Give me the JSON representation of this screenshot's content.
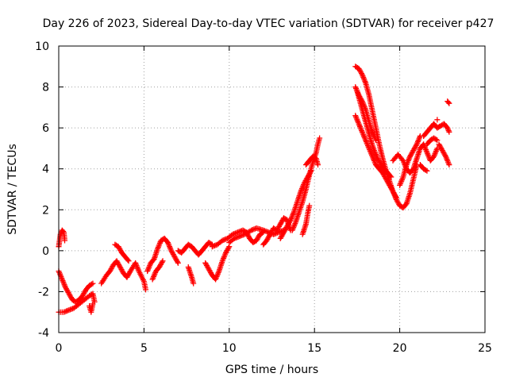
{
  "chart_data": {
    "type": "scatter",
    "title": "Day 226 of 2023, Sidereal Day-to-day VTEC variation (SDTVAR) for receiver p427",
    "xlabel": "GPS time / hours",
    "ylabel": "SDTVAR / TECUs",
    "xlim": [
      0,
      25
    ],
    "ylim": [
      -4,
      10
    ],
    "xticks": [
      0,
      5,
      10,
      15,
      20,
      25
    ],
    "yticks": [
      -4,
      -2,
      0,
      2,
      4,
      6,
      8,
      10
    ],
    "grid": true,
    "marker": "+",
    "series": [
      {
        "name": "SDTVAR",
        "color": "#ff0000",
        "segments": [
          [
            [
              0.0,
              0.2
            ],
            [
              0.1,
              0.8
            ],
            [
              0.2,
              1.0
            ],
            [
              0.3,
              0.9
            ],
            [
              0.35,
              0.5
            ]
          ],
          [
            [
              0.0,
              -1.0
            ],
            [
              0.2,
              -1.4
            ],
            [
              0.4,
              -1.8
            ],
            [
              0.6,
              -2.1
            ],
            [
              0.8,
              -2.4
            ],
            [
              1.0,
              -2.5
            ],
            [
              1.2,
              -2.4
            ],
            [
              1.4,
              -2.2
            ],
            [
              1.6,
              -1.9
            ],
            [
              1.8,
              -1.7
            ],
            [
              2.0,
              -1.6
            ]
          ],
          [
            [
              0.0,
              -3.0
            ],
            [
              0.3,
              -3.0
            ],
            [
              0.6,
              -2.9
            ],
            [
              0.9,
              -2.8
            ],
            [
              1.2,
              -2.6
            ],
            [
              1.5,
              -2.4
            ],
            [
              1.8,
              -2.2
            ],
            [
              2.0,
              -2.1
            ],
            [
              2.1,
              -2.5
            ]
          ],
          [
            [
              1.8,
              -2.7
            ],
            [
              1.9,
              -3.0
            ],
            [
              2.0,
              -2.6
            ]
          ],
          [
            [
              2.5,
              -1.6
            ],
            [
              2.8,
              -1.2
            ],
            [
              3.0,
              -1.0
            ],
            [
              3.2,
              -0.7
            ],
            [
              3.4,
              -0.5
            ],
            [
              3.6,
              -0.8
            ],
            [
              3.8,
              -1.1
            ],
            [
              4.0,
              -1.3
            ],
            [
              4.2,
              -1.0
            ],
            [
              4.5,
              -0.6
            ],
            [
              4.7,
              -1.0
            ],
            [
              5.0,
              -1.5
            ],
            [
              5.1,
              -1.9
            ]
          ],
          [
            [
              3.3,
              0.3
            ],
            [
              3.5,
              0.2
            ],
            [
              3.7,
              -0.1
            ],
            [
              3.9,
              -0.3
            ],
            [
              4.1,
              -0.5
            ]
          ],
          [
            [
              5.2,
              -1.0
            ],
            [
              5.4,
              -0.6
            ],
            [
              5.6,
              -0.4
            ],
            [
              5.8,
              0.1
            ],
            [
              6.0,
              0.5
            ],
            [
              6.2,
              0.6
            ],
            [
              6.4,
              0.4
            ],
            [
              6.6,
              0.0
            ],
            [
              6.8,
              -0.3
            ],
            [
              7.0,
              -0.6
            ]
          ],
          [
            [
              5.5,
              -1.4
            ],
            [
              5.7,
              -1.0
            ],
            [
              5.9,
              -0.8
            ],
            [
              6.1,
              -0.5
            ]
          ],
          [
            [
              7.0,
              0.0
            ],
            [
              7.2,
              -0.1
            ],
            [
              7.4,
              0.1
            ],
            [
              7.6,
              0.3
            ],
            [
              7.8,
              0.2
            ],
            [
              8.0,
              0.0
            ],
            [
              8.2,
              -0.2
            ],
            [
              8.4,
              0.0
            ],
            [
              8.6,
              0.2
            ],
            [
              8.8,
              0.4
            ],
            [
              9.0,
              0.3
            ]
          ],
          [
            [
              7.6,
              -0.8
            ],
            [
              7.8,
              -1.3
            ],
            [
              7.9,
              -1.6
            ]
          ],
          [
            [
              8.6,
              -0.6
            ],
            [
              8.8,
              -0.9
            ],
            [
              9.0,
              -1.2
            ],
            [
              9.2,
              -1.4
            ],
            [
              9.4,
              -1.0
            ],
            [
              9.6,
              -0.5
            ],
            [
              9.8,
              -0.1
            ],
            [
              10.0,
              0.2
            ]
          ],
          [
            [
              9.0,
              0.2
            ],
            [
              9.3,
              0.3
            ],
            [
              9.6,
              0.5
            ],
            [
              9.9,
              0.6
            ],
            [
              10.2,
              0.8
            ],
            [
              10.5,
              0.9
            ],
            [
              10.8,
              1.0
            ],
            [
              11.0,
              0.9
            ],
            [
              11.2,
              0.6
            ],
            [
              11.4,
              0.4
            ],
            [
              11.6,
              0.5
            ],
            [
              11.8,
              0.8
            ],
            [
              12.0,
              0.9
            ]
          ],
          [
            [
              10.0,
              0.4
            ],
            [
              10.3,
              0.6
            ],
            [
              10.6,
              0.7
            ],
            [
              10.9,
              0.8
            ],
            [
              11.3,
              1.0
            ],
            [
              11.6,
              1.1
            ],
            [
              12.0,
              1.0
            ],
            [
              12.3,
              0.9
            ],
            [
              12.6,
              0.8
            ],
            [
              12.9,
              0.9
            ],
            [
              13.2,
              1.0
            ]
          ],
          [
            [
              12.0,
              0.3
            ],
            [
              12.2,
              0.5
            ],
            [
              12.4,
              0.8
            ],
            [
              12.6,
              1.1
            ],
            [
              12.8,
              1.0
            ],
            [
              13.0,
              1.3
            ],
            [
              13.2,
              1.6
            ],
            [
              13.4,
              1.5
            ],
            [
              13.5,
              1.2
            ],
            [
              13.6,
              1.0
            ]
          ],
          [
            [
              13.0,
              0.6
            ],
            [
              13.2,
              0.9
            ],
            [
              13.4,
              1.2
            ],
            [
              13.6,
              1.5
            ],
            [
              13.8,
              1.9
            ],
            [
              14.0,
              2.4
            ],
            [
              14.2,
              2.9
            ],
            [
              14.4,
              3.3
            ],
            [
              14.6,
              3.6
            ],
            [
              14.8,
              3.9
            ]
          ],
          [
            [
              13.7,
              1.0
            ],
            [
              13.9,
              1.4
            ],
            [
              14.1,
              1.9
            ],
            [
              14.3,
              2.4
            ],
            [
              14.5,
              3.0
            ],
            [
              14.7,
              3.7
            ],
            [
              14.9,
              4.3
            ],
            [
              15.1,
              4.8
            ],
            [
              15.2,
              5.2
            ],
            [
              15.3,
              5.5
            ]
          ],
          [
            [
              14.3,
              0.8
            ],
            [
              14.5,
              1.3
            ],
            [
              14.6,
              1.8
            ],
            [
              14.7,
              2.2
            ]
          ],
          [
            [
              14.5,
              4.2
            ],
            [
              14.7,
              4.4
            ],
            [
              14.9,
              4.6
            ],
            [
              15.1,
              4.5
            ],
            [
              15.2,
              4.2
            ]
          ],
          [
            [
              17.4,
              9.0
            ],
            [
              17.6,
              8.9
            ],
            [
              17.8,
              8.6
            ],
            [
              18.0,
              8.2
            ],
            [
              18.2,
              7.6
            ],
            [
              18.4,
              6.8
            ],
            [
              18.6,
              6.0
            ],
            [
              18.8,
              5.2
            ],
            [
              19.0,
              4.5
            ],
            [
              19.2,
              3.9
            ],
            [
              19.4,
              3.4
            ],
            [
              19.6,
              2.9
            ],
            [
              19.8,
              2.5
            ],
            [
              20.0,
              2.2
            ],
            [
              20.2,
              2.1
            ],
            [
              20.4,
              2.3
            ],
            [
              20.6,
              2.8
            ],
            [
              20.8,
              3.5
            ],
            [
              21.0,
              4.2
            ]
          ],
          [
            [
              17.4,
              6.6
            ],
            [
              17.6,
              6.2
            ],
            [
              17.8,
              5.8
            ],
            [
              18.0,
              5.4
            ],
            [
              18.2,
              5.0
            ],
            [
              18.4,
              4.6
            ],
            [
              18.6,
              4.2
            ],
            [
              18.8,
              4.0
            ],
            [
              19.0,
              3.8
            ],
            [
              19.2,
              3.5
            ],
            [
              19.4,
              3.2
            ],
            [
              19.6,
              2.9
            ],
            [
              19.8,
              2.6
            ]
          ],
          [
            [
              17.5,
              7.8
            ],
            [
              17.7,
              7.2
            ],
            [
              17.9,
              6.6
            ],
            [
              18.1,
              6.0
            ],
            [
              18.3,
              5.4
            ],
            [
              18.5,
              4.9
            ],
            [
              18.7,
              4.5
            ],
            [
              18.9,
              4.2
            ],
            [
              19.1,
              4.0
            ],
            [
              19.3,
              3.8
            ],
            [
              19.5,
              3.6
            ]
          ],
          [
            [
              17.4,
              8.0
            ],
            [
              17.6,
              7.6
            ],
            [
              17.8,
              7.3
            ],
            [
              18.0,
              6.9
            ],
            [
              18.2,
              6.3
            ],
            [
              18.4,
              5.8
            ],
            [
              18.6,
              5.4
            ]
          ],
          [
            [
              19.6,
              4.4
            ],
            [
              19.9,
              4.7
            ],
            [
              20.2,
              4.4
            ],
            [
              20.4,
              4.0
            ],
            [
              20.6,
              3.8
            ],
            [
              20.8,
              4.0
            ],
            [
              21.0,
              4.5
            ],
            [
              21.2,
              5.0
            ],
            [
              21.4,
              5.2
            ],
            [
              21.6,
              4.8
            ],
            [
              21.8,
              4.4
            ],
            [
              22.0,
              4.6
            ],
            [
              22.2,
              5.0
            ]
          ],
          [
            [
              20.0,
              3.2
            ],
            [
              20.2,
              3.6
            ],
            [
              20.4,
              4.2
            ],
            [
              20.6,
              4.6
            ],
            [
              20.8,
              4.9
            ],
            [
              21.0,
              5.2
            ],
            [
              21.2,
              5.6
            ]
          ],
          [
            [
              21.2,
              4.2
            ],
            [
              21.4,
              4.0
            ],
            [
              21.6,
              3.9
            ]
          ],
          [
            [
              21.4,
              5.6
            ],
            [
              21.6,
              5.8
            ],
            [
              21.8,
              6.0
            ],
            [
              22.0,
              6.2
            ],
            [
              22.2,
              6.0
            ],
            [
              22.4,
              6.1
            ],
            [
              22.6,
              6.2
            ],
            [
              22.8,
              6.0
            ],
            [
              22.9,
              5.8
            ]
          ],
          [
            [
              21.6,
              5.2
            ],
            [
              21.8,
              5.4
            ],
            [
              22.0,
              5.5
            ],
            [
              22.2,
              5.4
            ]
          ],
          [
            [
              22.3,
              5.2
            ],
            [
              22.5,
              4.9
            ],
            [
              22.7,
              4.6
            ],
            [
              22.8,
              4.4
            ],
            [
              22.9,
              4.2
            ]
          ],
          [
            [
              22.8,
              7.3
            ],
            [
              22.9,
              7.2
            ]
          ],
          [
            [
              22.2,
              6.4
            ]
          ]
        ]
      }
    ]
  }
}
